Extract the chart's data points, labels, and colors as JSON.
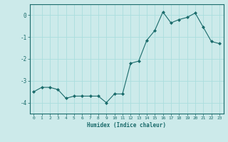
{
  "x": [
    0,
    1,
    2,
    3,
    4,
    5,
    6,
    7,
    8,
    9,
    10,
    11,
    12,
    13,
    14,
    15,
    16,
    17,
    18,
    19,
    20,
    21,
    22,
    23
  ],
  "y": [
    -3.5,
    -3.3,
    -3.3,
    -3.4,
    -3.8,
    -3.7,
    -3.7,
    -3.7,
    -3.7,
    -4.0,
    -3.6,
    -3.6,
    -2.2,
    -2.1,
    -1.15,
    -0.7,
    0.15,
    -0.35,
    -0.2,
    -0.1,
    0.1,
    -0.55,
    -1.2,
    -1.3
  ],
  "xlabel": "Humidex (Indice chaleur)",
  "ylabel": "",
  "ylim": [
    -4.5,
    0.5
  ],
  "xlim": [
    -0.5,
    23.5
  ],
  "bg_color": "#cceaea",
  "grid_color": "#aadddd",
  "line_color": "#1a6b6b",
  "marker_color": "#1a6b6b",
  "tick_label_color": "#1a6b6b",
  "xlabel_color": "#1a6b6b",
  "yticks": [
    0,
    -1,
    -2,
    -3,
    -4
  ],
  "xticks": [
    0,
    1,
    2,
    3,
    4,
    5,
    6,
    7,
    8,
    9,
    10,
    11,
    12,
    13,
    14,
    15,
    16,
    17,
    18,
    19,
    20,
    21,
    22,
    23
  ]
}
